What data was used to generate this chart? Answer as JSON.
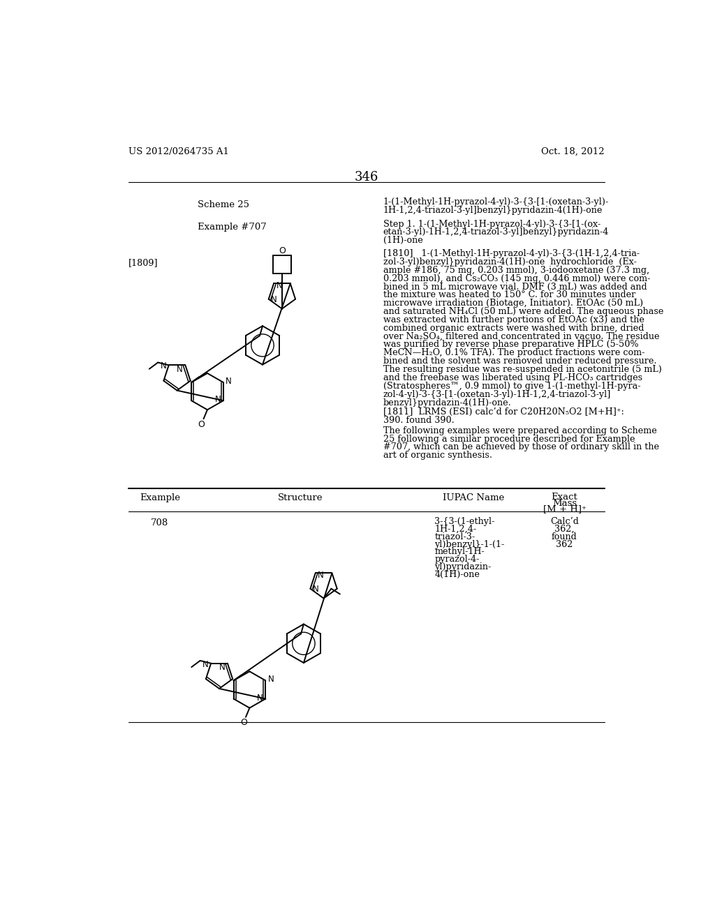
{
  "bg": "#ffffff",
  "header_left": "US 2012/0264735 A1",
  "header_right": "Oct. 18, 2012",
  "page_num": "346",
  "scheme_label": "Scheme 25",
  "scheme_name_1": "1-(1-Methyl-1H-pyrazol-4-yl)-3-{3-[1-(oxetan-3-yl)-",
  "scheme_name_2": "1H-1,2,4-triazol-3-yl]benzyl}pyridazin-4(1H)-one",
  "ex_label": "Example #707",
  "ex_step_1": "Step 1. 1-(1-Methyl-1H-pyrazol-4-yl)-3-{3-[1-(ox-",
  "ex_step_2": "etan-3-yl)-1H-1,2,4-triazol-3-yl]benzyl}pyridazin-4",
  "ex_step_3": "(1H)-one",
  "para_1809": "[1809]",
  "body1_lines": [
    "[1810]   1-(1-Methyl-1H-pyrazol-4-yl)-3-{3-(1H-1,2,4-tria-",
    "zol-3-yl)benzyl}pyridazin-4(1H)-one  hydrochloride  (Ex-",
    "ample #186, 75 mg, 0.203 mmol), 3-iodooxetane (37.3 mg,",
    "0.203 mmol), and Cs₂CO₃ (145 mg, 0.446 mmol) were com-",
    "bined in 5 mL microwave vial. DMF (3 mL) was added and",
    "the mixture was heated to 150° C. for 30 minutes under",
    "microwave irradiation (Biotage, Initiator). EtOAc (50 mL)",
    "and saturated NH₄Cl (50 mL) were added. The aqueous phase",
    "was extracted with further portions of EtOAc (x3) and the",
    "combined organic extracts were washed with brine, dried",
    "over Na₂SO₄, filtered and concentrated in vacuo. The residue",
    "was purified by reverse phase preparative HPLC (5-50%",
    "MeCN—H₂O, 0.1% TFA). The product fractions were com-",
    "bined and the solvent was removed under reduced pressure.",
    "The resulting residue was re-suspended in acetonitrile (5 mL)",
    "and the freebase was liberated using PL-HCO₃ cartridges",
    "(Stratospheres™, 0.9 mmol) to give 1-(1-methyl-1H-pyra-",
    "zol-4-yl)-3-{3-[1-(oxetan-3-yl)-1H-1,2,4-triazol-3-yl]",
    "benzyl}pyridazin-4(1H)-one."
  ],
  "body2_lines": [
    "[1811]  LRMS (ESI) calc’d for C20H20N₅O2 [M+H]⁺:",
    "390. found 390."
  ],
  "body3_lines": [
    "The following examples were prepared according to Scheme",
    "25 following a similar procedure described for Example",
    "#707, which can be achieved by those of ordinary skill in the",
    "art of organic synthesis."
  ],
  "col1": "Example",
  "col2": "Structure",
  "col3": "IUPAC Name",
  "col4_1": "Exact",
  "col4_2": "Mass",
  "col4_3": "[M + H]⁺",
  "row708_ex": "708",
  "row708_iupac": [
    "3-{3-(1-ethyl-",
    "1H-1,2,4-",
    "triazol-3-",
    "yl)benzyl}-1-(1-",
    "methyl-1H-",
    "pyrazol-4-",
    "yl)pyridazin-",
    "4(1H)-one"
  ],
  "row708_mass": [
    "Calc’d",
    "362,",
    "found",
    "362"
  ]
}
